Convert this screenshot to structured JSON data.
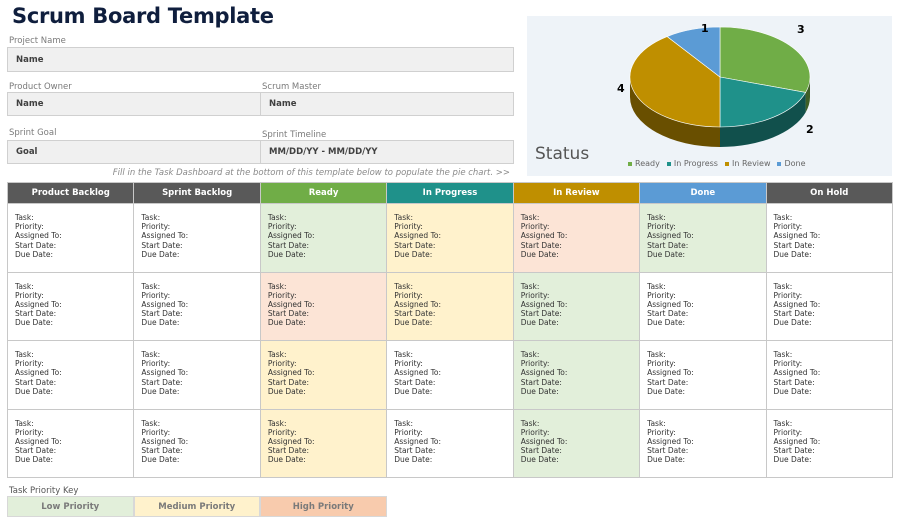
{
  "title": "Scrum Board Template",
  "form": {
    "project_name_label": "Project Name",
    "project_name_value": "Name",
    "product_owner_label": "Product Owner",
    "product_owner_value": "Name",
    "scrum_master_label": "Scrum Master",
    "scrum_master_value": "Name",
    "sprint_goal_label": "Sprint Goal",
    "sprint_goal_value": "Goal",
    "sprint_timeline_label": "Sprint Timeline",
    "sprint_timeline_value": "MM/DD/YY - MM/DD/YY"
  },
  "note": "Fill in the Task Dashboard at the bottom of this template below to populate the pie chart. >>",
  "board": {
    "columns": [
      {
        "label": "Product Backlog",
        "color": "#595959"
      },
      {
        "label": "Sprint Backlog",
        "color": "#595959"
      },
      {
        "label": "Ready",
        "color": "#70ad47"
      },
      {
        "label": "In Progress",
        "color": "#1f918a"
      },
      {
        "label": "In Review",
        "color": "#bf8f00"
      },
      {
        "label": "Done",
        "color": "#5b9bd5"
      },
      {
        "label": "On Hold",
        "color": "#595959"
      }
    ],
    "card_fields": [
      "Task:",
      "Priority:",
      "Assigned To:",
      "Start Date:",
      "Due Date:"
    ],
    "cell_priorities": [
      [
        "none",
        "none",
        "low",
        "medium",
        "high",
        "low",
        "none"
      ],
      [
        "none",
        "none",
        "high",
        "medium",
        "low",
        "none",
        "none"
      ],
      [
        "none",
        "none",
        "medium",
        "none",
        "low",
        "none",
        "none"
      ],
      [
        "none",
        "none",
        "medium",
        "none",
        "low",
        "none",
        "none"
      ]
    ]
  },
  "priority_colors": {
    "none": "#ffffff",
    "low": "#e2efda",
    "medium": "#fff2cc",
    "high": "#fce4d6"
  },
  "priority_key": {
    "label": "Task Priority Key",
    "items": [
      {
        "label": "Low Priority",
        "color": "#e2efda"
      },
      {
        "label": "Medium Priority",
        "color": "#fff2cc"
      },
      {
        "label": "High Priority",
        "color": "#f8cbad"
      }
    ]
  },
  "chart_data": {
    "type": "pie",
    "title": "Status",
    "categories": [
      "Ready",
      "In Progress",
      "In Review",
      "Done"
    ],
    "values": [
      3,
      2,
      4,
      1
    ],
    "colors": [
      "#70ad47",
      "#1f918a",
      "#bf8f00",
      "#5b9bd5"
    ],
    "legend": "bottom",
    "style": "3d"
  }
}
